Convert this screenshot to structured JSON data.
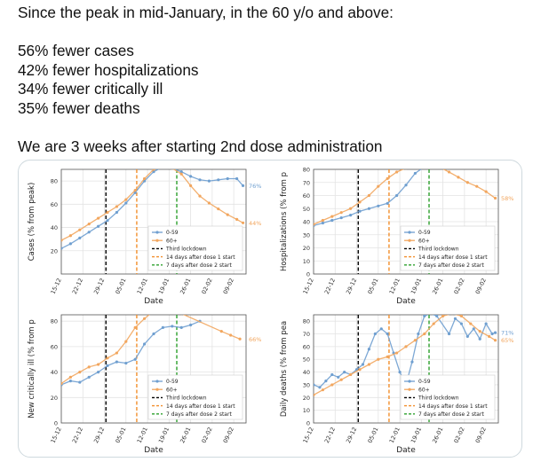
{
  "tweet": {
    "lines": [
      "Since the peak in mid-January, in the 60 y/o and above:",
      "56% fewer cases",
      "42% fewer hospitalizations",
      "34% fewer critically ill",
      "35% fewer deaths",
      "We are 3 weeks after starting 2nd dose administration"
    ]
  },
  "colors": {
    "group_0_59": "#6f9fd0",
    "group_60_plus": "#f2a65e",
    "third_lockdown": "#000000",
    "dose1_line": "#f28e2b",
    "dose2_line": "#2ca02c"
  },
  "chart_data": [
    {
      "type": "line",
      "ylabel": "Cases (% from peak)",
      "xlabel": "Date",
      "x_tick_labels": [
        "15-12",
        "22-12",
        "29-12",
        "05-01",
        "12-01",
        "19-01",
        "26-01",
        "02-02",
        "09-02"
      ],
      "x_range": [
        0,
        60
      ],
      "ylim": [
        0,
        90
      ],
      "y_ticks": [
        20,
        40,
        60,
        80
      ],
      "grid": true,
      "legend_placement": "lower-right",
      "legend": [
        "0-59",
        "60+",
        "Third lockdown",
        "14 days after dose 1 start",
        "7 days after dose 2 start"
      ],
      "vlines": {
        "third_lockdown": 14.5,
        "dose1": 24.5,
        "dose2": 37.5
      },
      "end_labels": {
        "0-59": "76%",
        "60+": "44%"
      },
      "series": [
        {
          "name": "0-59",
          "x": [
            0,
            3,
            6,
            9,
            12,
            15,
            18,
            21,
            24,
            27,
            30,
            33,
            36,
            39,
            42,
            45,
            48,
            51,
            54,
            57,
            59
          ],
          "y": [
            22,
            26,
            31,
            36,
            41,
            46,
            53,
            61,
            70,
            80,
            88,
            92,
            91,
            88,
            84,
            81,
            80,
            81,
            82,
            82,
            76
          ]
        },
        {
          "name": "60+",
          "x": [
            0,
            3,
            6,
            9,
            12,
            15,
            18,
            21,
            24,
            27,
            30,
            33,
            36,
            39,
            42,
            45,
            48,
            51,
            54,
            57,
            59
          ],
          "y": [
            29,
            33,
            38,
            43,
            48,
            53,
            58,
            64,
            72,
            82,
            90,
            93,
            91,
            86,
            76,
            67,
            61,
            56,
            51,
            47,
            44
          ]
        }
      ]
    },
    {
      "type": "line",
      "ylabel": "Hospitalizations (% from p",
      "xlabel": "Date",
      "x_tick_labels": [
        "15-12",
        "22-12",
        "29-12",
        "05-01",
        "12-01",
        "19-01",
        "26-01",
        "02-02",
        "09-02"
      ],
      "x_range": [
        0,
        60
      ],
      "ylim": [
        0,
        80
      ],
      "y_ticks": [
        0,
        10,
        20,
        30,
        40,
        50,
        60,
        70,
        80
      ],
      "grid": true,
      "legend_placement": "lower-right",
      "legend": [
        "0-59",
        "60+",
        "Third lockdown",
        "14 days after dose 1 start",
        "7 days after dose 2 start"
      ],
      "vlines": {
        "third_lockdown": 14.5,
        "dose1": 24.5,
        "dose2": 37.5
      },
      "end_labels": {
        "60+": "58%"
      },
      "series": [
        {
          "name": "0-59",
          "x": [
            0,
            3,
            6,
            9,
            12,
            15,
            18,
            21,
            24,
            27,
            30,
            33,
            36,
            39
          ],
          "y": [
            37,
            39,
            41,
            43,
            45,
            48,
            50,
            52,
            54,
            60,
            68,
            77,
            82,
            84
          ]
        },
        {
          "name": "60+",
          "x": [
            0,
            3,
            6,
            9,
            12,
            15,
            18,
            21,
            24,
            27,
            30,
            33,
            36,
            39,
            44,
            47,
            50,
            53,
            56,
            59
          ],
          "y": [
            38,
            41,
            44,
            47,
            50,
            55,
            60,
            67,
            73,
            78,
            81,
            83,
            84,
            84,
            78,
            74,
            70,
            67,
            63,
            58
          ]
        }
      ]
    },
    {
      "type": "line",
      "ylabel": "New critically ill (% from p",
      "xlabel": "Date",
      "x_tick_labels": [
        "15-12",
        "22-12",
        "29-12",
        "05-01",
        "12-01",
        "19-01",
        "26-01",
        "02-02",
        "09-02"
      ],
      "x_range": [
        0,
        60
      ],
      "ylim": [
        0,
        85
      ],
      "y_ticks": [
        0,
        20,
        40,
        60,
        80
      ],
      "grid": true,
      "legend_placement": "lower-right",
      "legend": [
        "0-59",
        "60+",
        "Third lockdown",
        "14 days after dose 1 start",
        "7 days after dose 2 start"
      ],
      "vlines": {
        "third_lockdown": 14.5,
        "dose1": 24.5,
        "dose2": 37.5
      },
      "end_labels": {
        "60+": "66%"
      },
      "series": [
        {
          "name": "0-59",
          "x": [
            0,
            3,
            6,
            9,
            12,
            15,
            18,
            21,
            24,
            27,
            30,
            33,
            36,
            39,
            42,
            45
          ],
          "y": [
            30,
            33,
            32,
            36,
            40,
            45,
            48,
            47,
            50,
            62,
            70,
            75,
            76,
            75,
            77,
            80
          ]
        },
        {
          "name": "60+",
          "x": [
            0,
            3,
            6,
            9,
            12,
            15,
            18,
            21,
            24,
            27,
            30,
            33,
            36,
            39,
            52,
            55,
            58
          ],
          "y": [
            31,
            36,
            40,
            44,
            46,
            51,
            55,
            64,
            75,
            82,
            88,
            90,
            88,
            86,
            72,
            69,
            66
          ]
        }
      ]
    },
    {
      "type": "line",
      "ylabel": "Daily deaths (% from pea",
      "xlabel": "Date",
      "x_tick_labels": [
        "15-12",
        "22-12",
        "29-12",
        "05-01",
        "12-01",
        "19-01",
        "26-01",
        "02-02",
        "09-02"
      ],
      "x_range": [
        0,
        60
      ],
      "ylim": [
        0,
        85
      ],
      "y_ticks": [
        0,
        10,
        20,
        30,
        40,
        50,
        60,
        70,
        80
      ],
      "grid": true,
      "legend_placement": "lower-right",
      "legend": [
        "0-59",
        "60+",
        "Third lockdown",
        "14 days after dose 1 start",
        "7 days after dose 2 start"
      ],
      "vlines": {
        "third_lockdown": 14.5,
        "dose1": 24.5,
        "dose2": 37.5
      },
      "end_labels": {
        "0-59": "71%",
        "60+": "65%"
      },
      "series": [
        {
          "name": "0-59",
          "x": [
            0,
            2,
            4,
            6,
            8,
            10,
            12,
            14,
            16,
            18,
            20,
            22,
            24,
            26,
            28,
            30,
            32,
            34,
            36,
            38,
            40,
            44,
            46,
            48,
            50,
            52,
            54,
            56,
            58,
            59
          ],
          "y": [
            30,
            28,
            33,
            38,
            36,
            40,
            38,
            42,
            46,
            58,
            70,
            74,
            70,
            55,
            40,
            30,
            48,
            70,
            84,
            86,
            84,
            70,
            82,
            78,
            68,
            74,
            66,
            78,
            70,
            71
          ]
        },
        {
          "name": "60+",
          "x": [
            0,
            3,
            6,
            9,
            12,
            15,
            18,
            21,
            24,
            27,
            30,
            33,
            36,
            39,
            42,
            45,
            48,
            51,
            54,
            57,
            59
          ],
          "y": [
            22,
            26,
            30,
            34,
            38,
            42,
            46,
            50,
            52,
            55,
            60,
            65,
            70,
            78,
            84,
            86,
            84,
            78,
            72,
            68,
            65
          ]
        }
      ]
    }
  ]
}
